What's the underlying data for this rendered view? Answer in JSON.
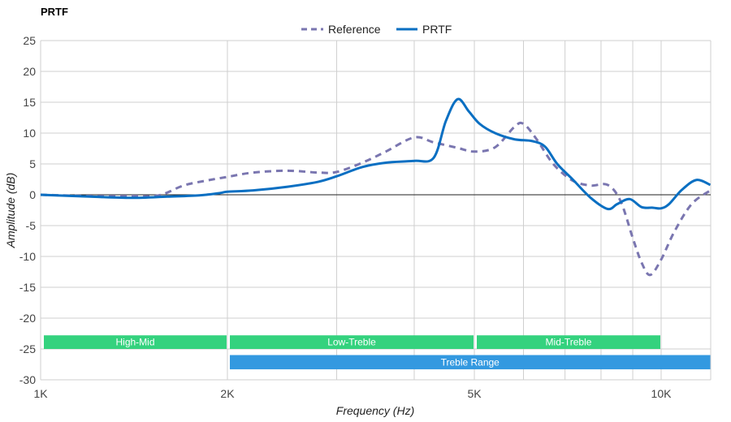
{
  "chart_data": {
    "type": "line",
    "title": "PRTF",
    "xlabel": "Frequency (Hz)",
    "ylabel": "Amplitude (dB)",
    "xscale": "log",
    "xlim": [
      1000,
      12000
    ],
    "ylim": [
      -30,
      25
    ],
    "grid": true,
    "legend_position": "top-center",
    "x_ticks": [
      {
        "value": 1000,
        "label": "1K"
      },
      {
        "value": 2000,
        "label": "2K"
      },
      {
        "value": 5000,
        "label": "5K"
      },
      {
        "value": 10000,
        "label": "10K"
      }
    ],
    "x_minor_grid": [
      3000,
      4000,
      6000,
      7000,
      8000,
      9000
    ],
    "y_ticks": [
      25,
      20,
      15,
      10,
      5,
      0,
      -5,
      -10,
      -15,
      -20,
      -25,
      -30
    ],
    "series": [
      {
        "name": "Reference",
        "color": "#7a76b0",
        "style": "dashed",
        "x": [
          1000,
          1200,
          1400,
          1550,
          1700,
          1850,
          2000,
          2200,
          2500,
          2800,
          3000,
          3300,
          3600,
          4000,
          4300,
          4700,
          5000,
          5400,
          5800,
          6000,
          6300,
          6700,
          7200,
          7700,
          8200,
          8600,
          9000,
          9300,
          9600,
          10000,
          10500,
          11200,
          12000
        ],
        "y": [
          0,
          -0.2,
          -0.2,
          -0.1,
          1.5,
          2.3,
          2.9,
          3.6,
          3.9,
          3.6,
          3.7,
          5.2,
          7,
          9.3,
          8.5,
          7.6,
          7.0,
          7.7,
          11,
          11.5,
          9,
          5,
          2.3,
          1.5,
          1.6,
          -1,
          -7,
          -11,
          -13,
          -10.5,
          -6,
          -1.5,
          0.7
        ]
      },
      {
        "name": "PRTF",
        "color": "#0a6fc2",
        "style": "solid",
        "x": [
          1000,
          1200,
          1400,
          1600,
          1800,
          1950,
          2000,
          2200,
          2500,
          2800,
          3000,
          3300,
          3600,
          4000,
          4300,
          4500,
          4700,
          4900,
          5100,
          5400,
          5800,
          6200,
          6500,
          6800,
          7200,
          7700,
          8200,
          8500,
          8900,
          9300,
          9700,
          10000,
          10300,
          10800,
          11400,
          12000
        ],
        "y": [
          0,
          -0.3,
          -0.5,
          -0.3,
          -0.1,
          0.3,
          0.5,
          0.7,
          1.3,
          2.1,
          3,
          4.5,
          5.2,
          5.5,
          6,
          12,
          15.5,
          13.5,
          11.5,
          10,
          9,
          8.7,
          7.8,
          5,
          2.5,
          -0.5,
          -2.3,
          -1.5,
          -0.7,
          -2,
          -2.1,
          -2.2,
          -1.5,
          0.8,
          2.4,
          1.6
        ]
      }
    ],
    "bands": [
      {
        "label": "High-Mid",
        "from": 1000,
        "to": 2000,
        "y_from": -22,
        "y_to": -25,
        "color": "#34d27e"
      },
      {
        "label": "Low-Treble",
        "from": 2000,
        "to": 5000,
        "y_from": -22,
        "y_to": -25,
        "color": "#34d27e"
      },
      {
        "label": "Mid-Treble",
        "from": 5000,
        "to": 10000,
        "y_from": -22,
        "y_to": -25,
        "color": "#34d27e"
      },
      {
        "label": "Treble Range",
        "from": 2000,
        "to": 12000,
        "y_from": -25.2,
        "y_to": -28.3,
        "color": "#3399e0"
      }
    ]
  }
}
